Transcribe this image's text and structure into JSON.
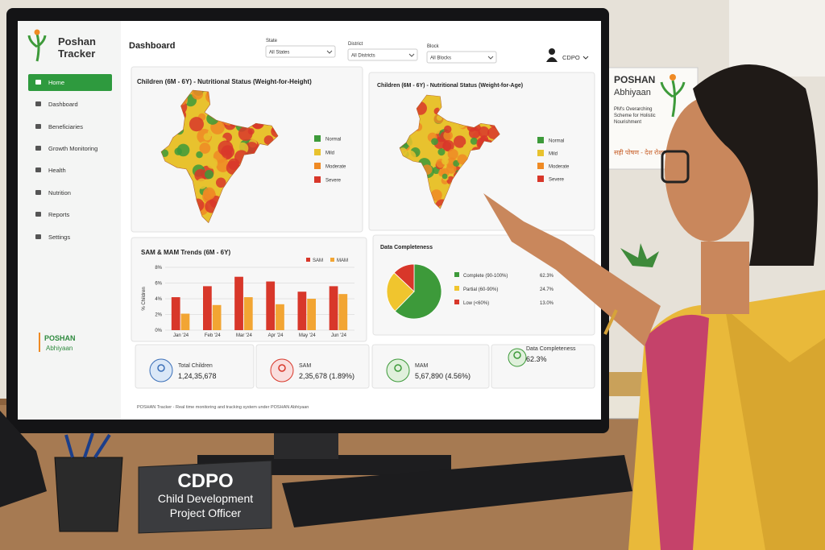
{
  "sidebar": {
    "logo": [
      "Poshan",
      "Tracker"
    ],
    "menu": [
      "Home",
      "Dashboard",
      "Beneficiaries",
      "Growth Monitoring",
      "Health",
      "Nutrition",
      "Reports",
      "Settings"
    ],
    "brand": [
      "POSHAN",
      "Abhiyaan"
    ]
  },
  "header": {
    "title": "Dashboard",
    "filters": [
      {
        "label": "State",
        "value": "All States"
      },
      {
        "label": "District",
        "value": "All Districts"
      },
      {
        "label": "Block",
        "value": "All Blocks"
      }
    ],
    "user": "CDPO"
  },
  "maps": [
    {
      "title": "Children (6M - 6Y) - Nutritional Status (Weight-for-Height)"
    },
    {
      "title": "Children (6M - 6Y) - Nutritional Status (Weight-for-Age)"
    }
  ],
  "map_legend": [
    {
      "name": "Normal",
      "color": "#3d9a3a"
    },
    {
      "name": "Mild",
      "color": "#e8c22e"
    },
    {
      "name": "Moderate",
      "color": "#ef8a24"
    },
    {
      "name": "Severe",
      "color": "#d8372a"
    }
  ],
  "trend_chart": {
    "type": "bar",
    "title": "SAM & MAM Trends (6M - 6Y)",
    "y_label": "% Children",
    "categories": [
      "Jan '24",
      "Feb '24",
      "Mar '24",
      "Apr '24",
      "May '24",
      "Jun '24"
    ],
    "series": [
      {
        "name": "SAM",
        "color": "#d8372a",
        "values": [
          4.2,
          5.6,
          6.8,
          6.2,
          4.9,
          5.6
        ]
      },
      {
        "name": "MAM",
        "color": "#f2a533",
        "values": [
          2.1,
          3.2,
          4.2,
          3.3,
          4.0,
          4.6
        ]
      }
    ],
    "ylim": [
      0,
      8
    ],
    "yticks": [
      {
        "value": 0,
        "label": "0%"
      },
      {
        "value": 2,
        "label": "2%"
      },
      {
        "value": 4,
        "label": "4%"
      },
      {
        "value": 6,
        "label": "6%"
      },
      {
        "value": 8,
        "label": "8%"
      }
    ]
  },
  "completeness_chart": {
    "type": "pie",
    "title": "Data Completeness",
    "categories": [
      "Complete (90-100%)",
      "Partial (60-90%)",
      "Low (<60%)"
    ],
    "values": [
      62.3,
      24.7,
      13.0
    ],
    "value_labels": [
      "62.3%",
      "24.7%",
      "13.0%"
    ],
    "colors": [
      "#3d9a3a",
      "#f0c52e",
      "#d8372a"
    ]
  },
  "kpis": [
    {
      "label": "Total Children",
      "value": "1,24,35,678"
    },
    {
      "label": "SAM",
      "value": "2,35,678 (1.89%)"
    },
    {
      "label": "MAM",
      "value": "5,67,890 (4.56%)"
    },
    {
      "label": "Data Completeness",
      "value": "62.3%"
    }
  ],
  "footer": "POSHAN Tracker - Real time monitoring and tracking system under POSHAN Abhiyaan",
  "poster": {
    "title": [
      "POSHAN",
      "Abhiyaan"
    ],
    "subtitle": [
      "PM's Overarching",
      "Scheme for Holistic",
      "Nourishment"
    ],
    "slogan": "सही पोषण - देश रोशन"
  },
  "nameplate": {
    "title": "CDPO",
    "subtitle": [
      "Child Development",
      "Project Officer"
    ]
  }
}
